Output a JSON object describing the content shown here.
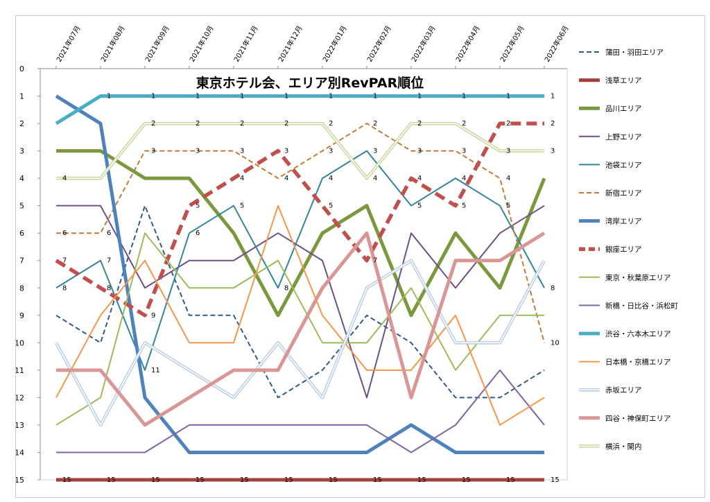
{
  "chart_data": {
    "type": "line",
    "title": "東京ホテル会、エリア別RevPAR順位",
    "x": [
      "2021年07月",
      "2021年08月",
      "2021年09月",
      "2021年10月",
      "2021年11月",
      "2021年12月",
      "2022年01月",
      "2022年02月",
      "2022年03月",
      "2022年04月",
      "2022年05月",
      "2022年06月"
    ],
    "y_ticks": [
      0,
      1,
      2,
      3,
      4,
      5,
      6,
      7,
      8,
      9,
      10,
      11,
      12,
      13,
      14,
      15
    ],
    "ylim": [
      0,
      15
    ],
    "y_reversed": true,
    "grid": false,
    "legend_position": "right",
    "series": [
      {
        "name": "蒲田・羽田エリア",
        "color": "#2e5a88",
        "style": "dash",
        "values": [
          9,
          10,
          5,
          9,
          9,
          12,
          11,
          9,
          10,
          12,
          12,
          11
        ]
      },
      {
        "name": "浅草エリア",
        "color": "#a5403d",
        "style": "solid-thick",
        "values": [
          15,
          15,
          15,
          15,
          15,
          15,
          15,
          15,
          15,
          15,
          15,
          15
        ]
      },
      {
        "name": "品川エリア",
        "color": "#7a983d",
        "style": "solid-thick",
        "values": [
          3,
          3,
          4,
          4,
          6,
          9,
          6,
          5,
          9,
          6,
          8,
          4
        ]
      },
      {
        "name": "上野エリア",
        "color": "#6d4e86",
        "style": "solid",
        "values": [
          5,
          5,
          8,
          7,
          7,
          6,
          7,
          12,
          6,
          8,
          6,
          5
        ]
      },
      {
        "name": "池袋エリア",
        "color": "#31849b",
        "style": "solid",
        "values": [
          8,
          7,
          11,
          6,
          5,
          8,
          4,
          3,
          5,
          4,
          5,
          8
        ]
      },
      {
        "name": "新宿エリア",
        "color": "#c27b34",
        "style": "dash",
        "values": [
          6,
          6,
          3,
          3,
          3,
          4,
          3,
          2,
          3,
          3,
          4,
          10
        ]
      },
      {
        "name": "湾岸エリア",
        "color": "#4f81bd",
        "style": "solid-thick",
        "values": [
          1,
          2,
          12,
          14,
          14,
          14,
          14,
          14,
          13,
          14,
          14,
          14
        ]
      },
      {
        "name": "銀座エリア",
        "color": "#c0504d",
        "style": "dash-thick",
        "values": [
          7,
          8,
          9,
          5,
          4,
          3,
          5,
          7,
          4,
          5,
          2,
          2
        ]
      },
      {
        "name": "東京・秋葉原エリア",
        "color": "#9bbb59",
        "style": "solid",
        "values": [
          13,
          12,
          6,
          8,
          8,
          7,
          10,
          10,
          8,
          11,
          9,
          9
        ]
      },
      {
        "name": "新橋・日比谷・浜松町",
        "color": "#8064a2",
        "style": "solid",
        "values": [
          14,
          14,
          14,
          13,
          13,
          13,
          13,
          13,
          14,
          13,
          11,
          13
        ]
      },
      {
        "name": "渋谷・六本木エリア",
        "color": "#4bacc6",
        "style": "solid-thick",
        "values": [
          2,
          1,
          1,
          1,
          1,
          1,
          1,
          1,
          1,
          1,
          1,
          1
        ]
      },
      {
        "name": "日本橋・京橋エリア",
        "color": "#f79646",
        "style": "solid",
        "values": [
          12,
          9,
          7,
          10,
          10,
          5,
          9,
          11,
          11,
          9,
          13,
          12
        ]
      },
      {
        "name": "赤坂エリア",
        "color": "#b8cce4",
        "style": "double",
        "values": [
          10,
          13,
          10,
          11,
          12,
          10,
          12,
          8,
          7,
          10,
          10,
          7
        ]
      },
      {
        "name": "四谷・神保町エリア",
        "color": "#d99694",
        "style": "solid-thick",
        "values": [
          11,
          11,
          13,
          12,
          11,
          11,
          8,
          6,
          12,
          7,
          7,
          6
        ]
      },
      {
        "name": "横浜・関内",
        "color": "#c4d79b",
        "style": "double",
        "values": [
          4,
          4,
          2,
          2,
          2,
          2,
          2,
          4,
          2,
          2,
          3,
          3
        ]
      }
    ],
    "data_labels": [
      {
        "series": 10,
        "points": [
          1,
          2,
          3,
          4,
          5,
          6,
          7,
          8,
          9,
          10,
          11
        ]
      },
      {
        "series": 14,
        "points": [
          0,
          2,
          3,
          4,
          5,
          6,
          7,
          8,
          9,
          10,
          11
        ]
      },
      {
        "series": 5,
        "points": [
          0,
          1,
          2,
          3,
          4,
          5,
          6,
          7,
          8,
          9,
          10,
          11
        ]
      },
      {
        "series": 7,
        "points": [
          0,
          1,
          2,
          3,
          4,
          5,
          6,
          7,
          8,
          9,
          10,
          11
        ]
      },
      {
        "series": 4,
        "points": [
          0,
          1,
          2,
          3,
          4,
          5,
          6,
          7,
          8,
          9,
          10,
          11
        ]
      },
      {
        "series": 1,
        "points": [
          0,
          1,
          2,
          3,
          4,
          5,
          6,
          7,
          8,
          9,
          10,
          11
        ]
      }
    ]
  }
}
